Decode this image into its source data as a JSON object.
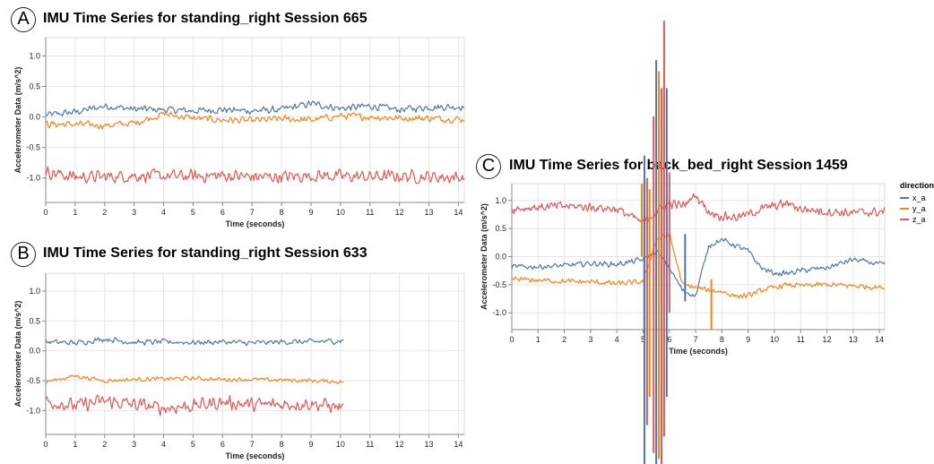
{
  "legend": {
    "title": "direction",
    "items": [
      {
        "label": "x_a",
        "color": "#4c78a8"
      },
      {
        "label": "y_a",
        "color": "#f58518"
      },
      {
        "label": "z_a",
        "color": "#e45756"
      }
    ]
  },
  "chart_data": [
    {
      "panel_label": "A",
      "type": "line",
      "title": "IMU Time Series for standing_right Session 665",
      "xlabel": "Time (seconds)",
      "ylabel": "Accelerometer Data (m/s^2)",
      "xlim": [
        0,
        14.2
      ],
      "ylim": [
        -1.4,
        1.3
      ],
      "xticks": [
        "0",
        "1",
        "2",
        "3",
        "4",
        "5",
        "6",
        "7",
        "8",
        "9",
        "10",
        "11",
        "12",
        "13",
        "14"
      ],
      "yticks": [
        "1.0",
        "0.5",
        "0.0",
        "-0.5",
        "-1.0"
      ],
      "duration": 14.2,
      "series": [
        {
          "name": "x_a",
          "color": "#4c78a8",
          "mean": 0.12,
          "amp": 0.05,
          "x": [
            0,
            1,
            2,
            3,
            4,
            5,
            6,
            7,
            8,
            9,
            10,
            11,
            12,
            13,
            14.2
          ],
          "y": [
            0.03,
            0.08,
            0.18,
            0.13,
            0.12,
            0.1,
            0.12,
            0.1,
            0.12,
            0.22,
            0.14,
            0.18,
            0.12,
            0.16,
            0.17
          ]
        },
        {
          "name": "y_a",
          "color": "#f58518",
          "mean": -0.08,
          "amp": 0.05,
          "x": [
            0,
            1,
            2,
            3,
            4,
            5,
            6,
            7,
            8,
            9,
            10,
            11,
            12,
            13,
            14.2
          ],
          "y": [
            -0.12,
            -0.12,
            -0.14,
            -0.1,
            0.05,
            -0.02,
            -0.05,
            -0.06,
            -0.03,
            -0.05,
            0.02,
            0.0,
            -0.02,
            -0.02,
            -0.04
          ]
        },
        {
          "name": "z_a",
          "color": "#e45756",
          "mean": -0.97,
          "amp": 0.09,
          "x": [
            0,
            1,
            2,
            3,
            4,
            5,
            6,
            7,
            8,
            9,
            10,
            11,
            12,
            13,
            14.2
          ],
          "y": [
            -0.9,
            -0.98,
            -0.98,
            -0.96,
            -0.97,
            -0.97,
            -0.96,
            -0.98,
            -0.98,
            -0.96,
            -0.97,
            -0.98,
            -0.97,
            -0.98,
            -0.99
          ]
        }
      ]
    },
    {
      "panel_label": "B",
      "type": "line",
      "title": "IMU Time Series for standing_right Session 633",
      "xlabel": "Time (seconds)",
      "ylabel": "Accelerometer Data (m/s^2)",
      "xlim": [
        0,
        14.2
      ],
      "ylim": [
        -1.4,
        1.3
      ],
      "xticks": [
        "0",
        "1",
        "2",
        "3",
        "4",
        "5",
        "6",
        "7",
        "8",
        "9",
        "10",
        "11",
        "12",
        "13",
        "14"
      ],
      "yticks": [
        "1.0",
        "0.5",
        "0.0",
        "-0.5",
        "-1.0"
      ],
      "duration": 10.1,
      "series": [
        {
          "name": "x_a",
          "color": "#4c78a8",
          "mean": 0.15,
          "amp": 0.04,
          "x": [
            0,
            1,
            2,
            3,
            4,
            5,
            6,
            7,
            8,
            9,
            10.1
          ],
          "y": [
            0.15,
            0.13,
            0.2,
            0.14,
            0.15,
            0.14,
            0.15,
            0.13,
            0.15,
            0.15,
            0.17
          ]
        },
        {
          "name": "y_a",
          "color": "#f58518",
          "mean": -0.48,
          "amp": 0.03,
          "x": [
            0,
            1,
            2,
            3,
            4,
            5,
            6,
            7,
            8,
            9,
            10.1
          ],
          "y": [
            -0.52,
            -0.42,
            -0.5,
            -0.48,
            -0.47,
            -0.46,
            -0.48,
            -0.48,
            -0.49,
            -0.5,
            -0.52
          ]
        },
        {
          "name": "z_a",
          "color": "#e45756",
          "mean": -0.9,
          "amp": 0.1,
          "x": [
            0,
            1,
            2,
            3,
            4,
            5,
            6,
            7,
            8,
            9,
            10.1
          ],
          "y": [
            -0.85,
            -0.92,
            -0.84,
            -0.9,
            -0.96,
            -0.92,
            -0.86,
            -0.9,
            -0.9,
            -0.88,
            -0.95
          ]
        }
      ]
    },
    {
      "panel_label": "C",
      "type": "line",
      "title": "IMU Time Series for back_bed_right Session 1459",
      "xlabel": "Time (seconds)",
      "ylabel": "Accelerometer Data (m/s^2)",
      "xlim": [
        0,
        14.2
      ],
      "ylim": [
        -1.3,
        1.3
      ],
      "xticks": [
        "0",
        "1",
        "2",
        "3",
        "4",
        "5",
        "6",
        "7",
        "8",
        "9",
        "10",
        "11",
        "12",
        "13",
        "14"
      ],
      "yticks": [
        "1.0",
        "0.5",
        "0.0",
        "-0.5",
        "-1.0"
      ],
      "duration": 14.2,
      "series": [
        {
          "name": "x_a",
          "color": "#4c78a8",
          "mean": -0.15,
          "amp": 0.04,
          "x": [
            0,
            1,
            2,
            3,
            4,
            5,
            5.5,
            6,
            6.5,
            7,
            7.5,
            8,
            8.5,
            9,
            9.5,
            10,
            10.5,
            11,
            12,
            13,
            14.2
          ],
          "y": [
            -0.18,
            -0.18,
            -0.16,
            -0.12,
            -0.14,
            -0.05,
            0.1,
            -0.2,
            -0.6,
            -0.7,
            0.2,
            0.3,
            0.2,
            0.1,
            -0.2,
            -0.3,
            -0.3,
            -0.25,
            -0.2,
            -0.05,
            -0.15
          ]
        },
        {
          "name": "y_a",
          "color": "#f58518",
          "mean": -0.45,
          "amp": 0.04,
          "x": [
            0,
            1,
            2,
            3,
            4,
            5,
            5.5,
            6,
            6.5,
            7,
            7.5,
            8,
            8.5,
            9,
            9.5,
            10,
            10.5,
            11,
            12,
            13,
            14.2
          ],
          "y": [
            -0.4,
            -0.42,
            -0.44,
            -0.45,
            -0.48,
            -0.45,
            0.3,
            0.4,
            -0.5,
            -0.55,
            -0.6,
            -0.62,
            -0.7,
            -0.7,
            -0.6,
            -0.55,
            -0.5,
            -0.52,
            -0.5,
            -0.52,
            -0.55
          ]
        },
        {
          "name": "z_a",
          "color": "#e45756",
          "mean": 0.85,
          "amp": 0.07,
          "x": [
            0,
            1,
            2,
            3,
            4,
            5,
            5.5,
            6,
            6.5,
            7,
            7.5,
            8,
            8.5,
            9,
            9.5,
            10,
            10.5,
            11,
            12,
            13,
            14.2
          ],
          "y": [
            0.85,
            0.88,
            0.9,
            0.88,
            0.85,
            0.6,
            0.8,
            0.95,
            0.9,
            1.1,
            0.8,
            0.72,
            0.7,
            0.75,
            0.85,
            0.9,
            0.95,
            0.85,
            0.8,
            0.78,
            0.8
          ]
        }
      ]
    }
  ]
}
